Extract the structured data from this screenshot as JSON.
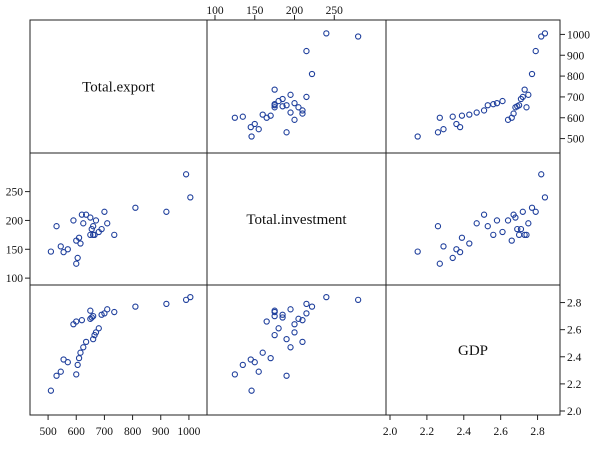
{
  "chart_data": {
    "type": "scatter",
    "variables": [
      "Total.export",
      "Total.investment",
      "GDP"
    ],
    "points": [
      {
        "export": 510,
        "investment": 146,
        "gdp": 2.15
      },
      {
        "export": 530,
        "investment": 190,
        "gdp": 2.26
      },
      {
        "export": 545,
        "investment": 155,
        "gdp": 2.29
      },
      {
        "export": 570,
        "investment": 150,
        "gdp": 2.36
      },
      {
        "export": 555,
        "investment": 145,
        "gdp": 2.38
      },
      {
        "export": 600,
        "investment": 125,
        "gdp": 2.27
      },
      {
        "export": 605,
        "investment": 135,
        "gdp": 2.34
      },
      {
        "export": 610,
        "investment": 170,
        "gdp": 2.39
      },
      {
        "export": 615,
        "investment": 160,
        "gdp": 2.43
      },
      {
        "export": 625,
        "investment": 195,
        "gdp": 2.47
      },
      {
        "export": 635,
        "investment": 210,
        "gdp": 2.51
      },
      {
        "export": 660,
        "investment": 190,
        "gdp": 2.53
      },
      {
        "export": 665,
        "investment": 175,
        "gdp": 2.56
      },
      {
        "export": 670,
        "investment": 200,
        "gdp": 2.58
      },
      {
        "export": 680,
        "investment": 180,
        "gdp": 2.61
      },
      {
        "export": 590,
        "investment": 200,
        "gdp": 2.64
      },
      {
        "export": 600,
        "investment": 165,
        "gdp": 2.66
      },
      {
        "export": 620,
        "investment": 210,
        "gdp": 2.67
      },
      {
        "export": 650,
        "investment": 205,
        "gdp": 2.68
      },
      {
        "export": 655,
        "investment": 185,
        "gdp": 2.69
      },
      {
        "export": 660,
        "investment": 175,
        "gdp": 2.7
      },
      {
        "export": 690,
        "investment": 185,
        "gdp": 2.71
      },
      {
        "export": 700,
        "investment": 215,
        "gdp": 2.72
      },
      {
        "export": 735,
        "investment": 175,
        "gdp": 2.73
      },
      {
        "export": 650,
        "investment": 175,
        "gdp": 2.74
      },
      {
        "export": 710,
        "investment": 195,
        "gdp": 2.75
      },
      {
        "export": 810,
        "investment": 222,
        "gdp": 2.77
      },
      {
        "export": 920,
        "investment": 215,
        "gdp": 2.79
      },
      {
        "export": 990,
        "investment": 280,
        "gdp": 2.82
      },
      {
        "export": 1005,
        "investment": 240,
        "gdp": 2.84
      }
    ],
    "ranges": {
      "export": [
        450,
        1050
      ],
      "investment": [
        95,
        310
      ],
      "gdp": [
        2.0,
        2.9
      ]
    },
    "ticks": {
      "export_bottom": [
        500,
        600,
        700,
        800,
        900,
        1000
      ],
      "export_right": [
        500,
        600,
        700,
        800,
        900,
        1000
      ],
      "investment_top": [
        100,
        150,
        200,
        250
      ],
      "investment_left": [
        100,
        150,
        200,
        250
      ],
      "gdp_bottom": [
        2.0,
        2.2,
        2.4,
        2.6,
        2.8
      ],
      "gdp_right": [
        2.0,
        2.2,
        2.4,
        2.6,
        2.8
      ]
    },
    "tick_labels": {
      "export_bottom": [
        "500",
        "600",
        "700",
        "800",
        "900",
        "1000"
      ],
      "export_right": [
        "500",
        "600",
        "700",
        "800",
        "900",
        "1000"
      ],
      "investment_top": [
        "100",
        "150",
        "200",
        "250"
      ],
      "investment_left": [
        "100",
        "150",
        "200",
        "250"
      ],
      "gdp_bottom": [
        "2.0",
        "2.2",
        "2.4",
        "2.6",
        "2.8"
      ],
      "gdp_right": [
        "2.0",
        "2.2",
        "2.4",
        "2.6",
        "2.8"
      ]
    },
    "colors": {
      "points": "#1f3f9c",
      "frame": "#222222"
    },
    "grid": false
  }
}
